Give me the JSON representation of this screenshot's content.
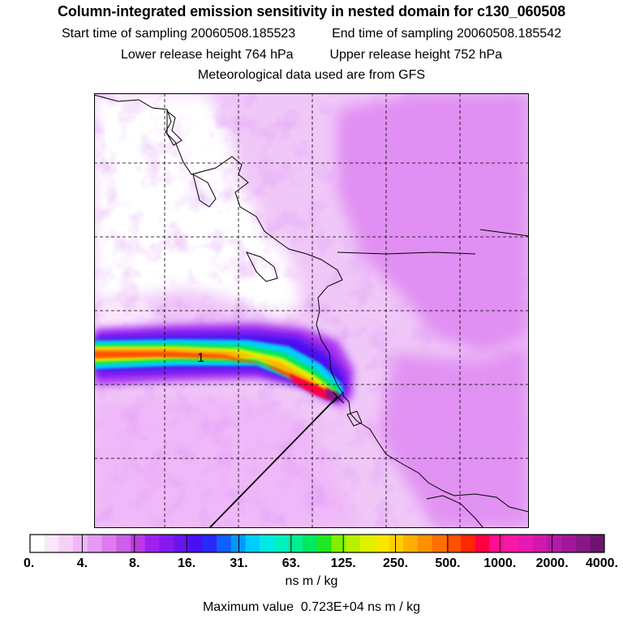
{
  "title": "Column-integrated emission sensitivity in nested domain for c130_060508",
  "sampling": {
    "start_label": "Start time of sampling",
    "start_value": "20060508.185523",
    "end_label": "End time of sampling",
    "end_value": "20060508.185542"
  },
  "release": {
    "lower_label": "Lower release height",
    "lower_value": "764 hPa",
    "upper_label": "Upper release height",
    "upper_value": "752 hPa"
  },
  "met_line": "Meteorological data used are from GFS",
  "map": {
    "plume_label": "1",
    "background_color": "#f0c8f8"
  },
  "colorbar": {
    "tick_labels": [
      "0.",
      "4.",
      "8.",
      "16.",
      "31.",
      "63.",
      "125.",
      "250.",
      "500.",
      "1000.",
      "2000.",
      "4000."
    ],
    "colors": [
      "#ffffff",
      "#fbe6fd",
      "#f5d0fb",
      "#efb8f8",
      "#e79af4",
      "#dc7cf0",
      "#cf5ee9",
      "#bd3ae3",
      "#a020f0",
      "#8818f0",
      "#6a14f0",
      "#4a10f0",
      "#2828ff",
      "#1060ff",
      "#0098ff",
      "#00ccff",
      "#00e8e8",
      "#00f0c0",
      "#00f090",
      "#00e860",
      "#20e820",
      "#80f000",
      "#b8f000",
      "#e0f000",
      "#f8e800",
      "#ffd000",
      "#ffb000",
      "#ff9000",
      "#ff7000",
      "#ff5000",
      "#ff2800",
      "#ff0040",
      "#ff1090",
      "#f818a8",
      "#e818b0",
      "#d018b0",
      "#b818a8",
      "#a01898",
      "#881888",
      "#6a1670"
    ],
    "units": "ns m / kg"
  },
  "max_value_label": "Maximum value",
  "max_value": "0.723E+04 ns m / kg"
}
